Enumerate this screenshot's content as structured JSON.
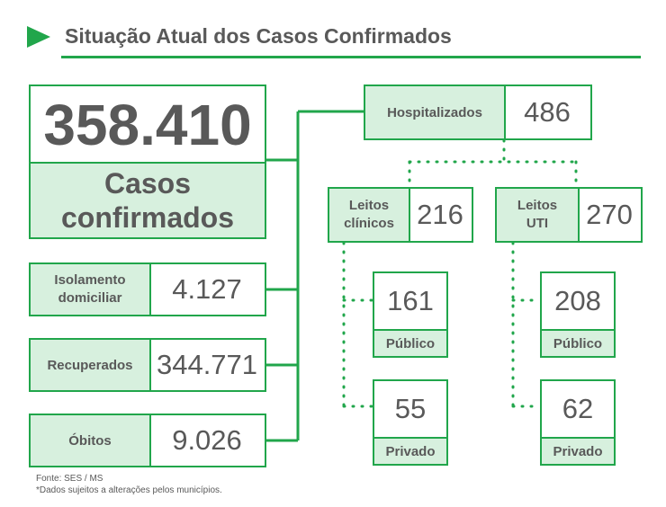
{
  "title": "Situação Atual dos Casos Confirmados",
  "total": {
    "value": "358.410",
    "label_line1": "Casos",
    "label_line2": "confirmados"
  },
  "isolamento": {
    "label_line1": "Isolamento",
    "label_line2": "domiciliar",
    "value": "4.127"
  },
  "recuperados": {
    "label": "Recuperados",
    "value": "344.771"
  },
  "obitos": {
    "label": "Óbitos",
    "value": "9.026"
  },
  "hospitalizados": {
    "label": "Hospitalizados",
    "value": "486"
  },
  "leitos_clinicos": {
    "label_line1": "Leitos",
    "label_line2": "clínicos",
    "value": "216",
    "publico": {
      "value": "161",
      "label": "Público"
    },
    "privado": {
      "value": "55",
      "label": "Privado"
    }
  },
  "leitos_uti": {
    "label_line1": "Leitos",
    "label_line2": "UTI",
    "value": "270",
    "publico": {
      "value": "208",
      "label": "Público"
    },
    "privado": {
      "value": "62",
      "label": "Privado"
    }
  },
  "footer": {
    "source": "Fonte: SES / MS",
    "note": "*Dados sujeitos a alterações pelos municípios."
  },
  "colors": {
    "accent": "#21a64b",
    "label_fill": "#d7f0de",
    "text": "#595959"
  }
}
